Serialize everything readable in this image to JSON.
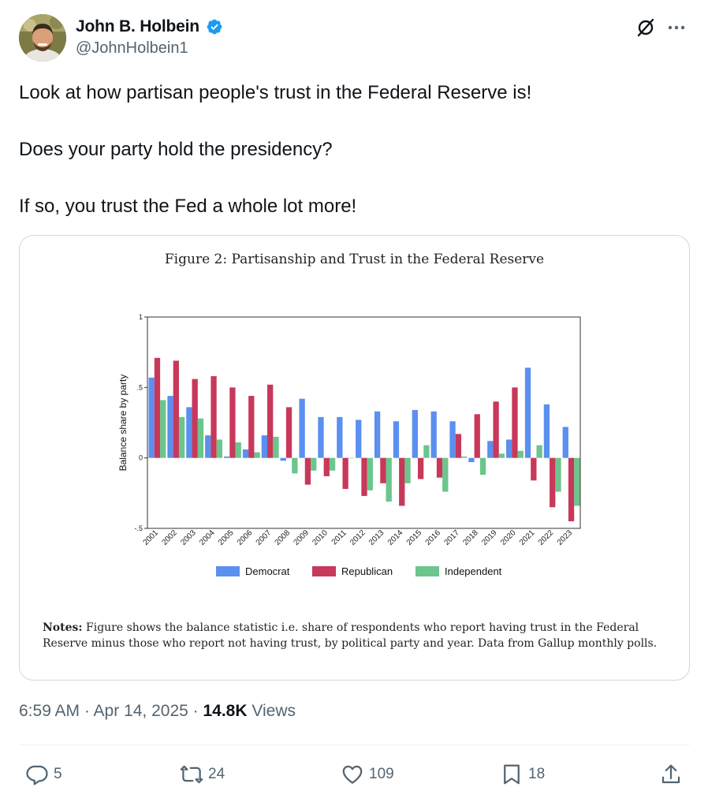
{
  "author": {
    "display_name": "John B. Holbein",
    "handle": "@JohnHolbein1",
    "verified": true
  },
  "header_icons": [
    "grok-icon",
    "more-icon"
  ],
  "tweet": {
    "lines": [
      "Look at how partisan people's trust in the Federal Reserve is!",
      "Does your party hold the presidency?",
      "If so, you trust the Fed a whole lot more!"
    ]
  },
  "figure": {
    "title": "Figure 2: Partisanship and Trust in the Federal Reserve",
    "notes_label": "Notes:",
    "notes_text": "Figure shows the balance statistic i.e. share of respondents who report having trust in the Federal Reserve minus those who report not having trust, by political party and year. Data from Gallup monthly polls."
  },
  "chart_data": {
    "type": "bar",
    "title": "Figure 2: Partisanship and Trust in the Federal Reserve",
    "ylabel": "Balance share by party",
    "xlabel": "",
    "ylim": [
      -0.5,
      1
    ],
    "yticks": [
      "1",
      ".5",
      "0",
      "-.5"
    ],
    "ytick_values": [
      1,
      0.5,
      0,
      -0.5
    ],
    "legend_position": "bottom",
    "categories": [
      "2001",
      "2002",
      "2003",
      "2004",
      "2005",
      "2006",
      "2007",
      "2008",
      "2009",
      "2010",
      "2011",
      "2012",
      "2013",
      "2014",
      "2015",
      "2016",
      "2017",
      "2018",
      "2019",
      "2020",
      "2021",
      "2022",
      "2023"
    ],
    "series": [
      {
        "name": "Democrat",
        "color": "#5b8ff0",
        "values": [
          0.57,
          0.44,
          0.36,
          0.16,
          0.01,
          0.06,
          0.16,
          -0.02,
          0.42,
          0.29,
          0.29,
          0.27,
          0.33,
          0.26,
          0.34,
          0.33,
          0.26,
          -0.03,
          0.12,
          0.13,
          0.64,
          0.38,
          0.22
        ]
      },
      {
        "name": "Republican",
        "color": "#c8385a",
        "values": [
          0.71,
          0.69,
          0.56,
          0.58,
          0.5,
          0.44,
          0.52,
          0.36,
          -0.19,
          -0.13,
          -0.22,
          -0.27,
          -0.18,
          -0.34,
          -0.15,
          -0.14,
          0.17,
          0.31,
          0.4,
          0.5,
          -0.16,
          -0.35,
          -0.45
        ]
      },
      {
        "name": "Independent",
        "color": "#6cc58c",
        "values": [
          0.41,
          0.29,
          0.28,
          0.13,
          0.11,
          0.04,
          0.15,
          -0.11,
          -0.09,
          -0.09,
          0.0,
          -0.23,
          -0.31,
          -0.18,
          0.09,
          -0.24,
          0.01,
          -0.12,
          0.03,
          0.05,
          0.09,
          -0.24,
          -0.34
        ]
      }
    ]
  },
  "meta": {
    "time_date": "6:59 AM · Apr 14, 2025 · ",
    "views_count": "14.8K",
    "views_label": " Views"
  },
  "actions": {
    "replies": "5",
    "reposts": "24",
    "likes": "109",
    "bookmarks": "18"
  },
  "colors": {
    "verified_badge": "#1d9bf0",
    "secondary_text": "#536471",
    "border": "#cfd9de"
  }
}
